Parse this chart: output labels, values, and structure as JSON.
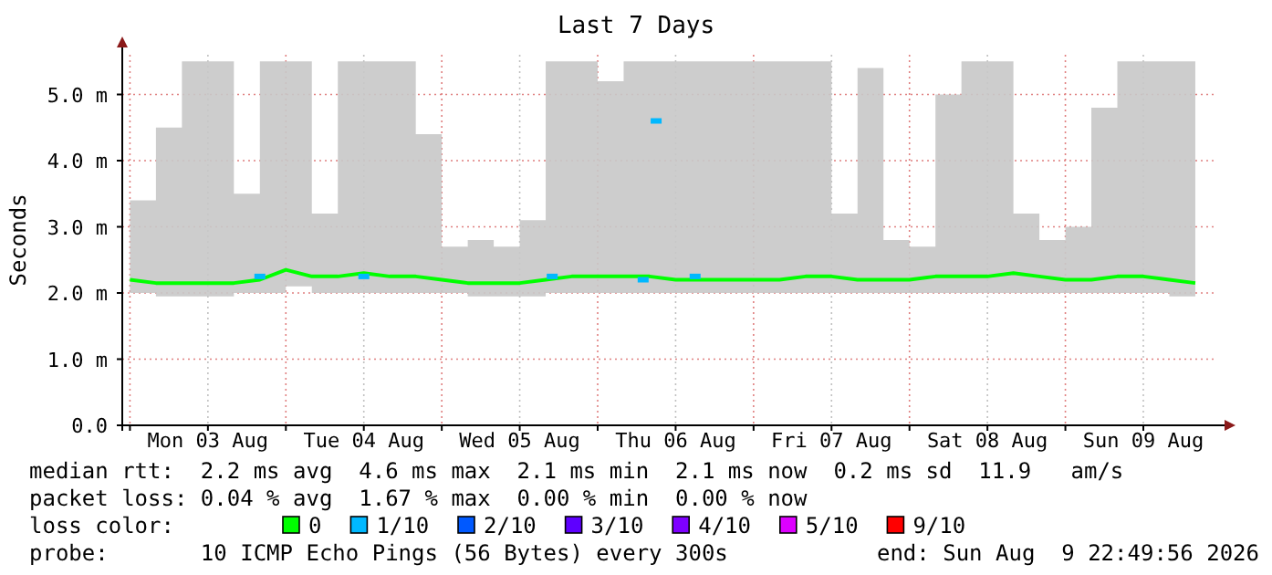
{
  "chart_data": {
    "type": "line",
    "title": "Last 7 Days",
    "ylabel": "Seconds",
    "xlim": [
      "2026-08-02T22:49",
      "2026-08-09T22:49"
    ],
    "xticks": [
      {
        "value": "2026-08-03T00:00",
        "label": null
      },
      {
        "value": "2026-08-03T12:00",
        "label": "Mon 03 Aug"
      },
      {
        "value": "2026-08-04T00:00",
        "label": null
      },
      {
        "value": "2026-08-04T12:00",
        "label": "Tue 04 Aug"
      },
      {
        "value": "2026-08-05T00:00",
        "label": null
      },
      {
        "value": "2026-08-05T12:00",
        "label": "Wed 05 Aug"
      },
      {
        "value": "2026-08-06T00:00",
        "label": null
      },
      {
        "value": "2026-08-06T12:00",
        "label": "Thu 06 Aug"
      },
      {
        "value": "2026-08-07T00:00",
        "label": null
      },
      {
        "value": "2026-08-07T12:00",
        "label": "Fri 07 Aug"
      },
      {
        "value": "2026-08-08T00:00",
        "label": null
      },
      {
        "value": "2026-08-08T12:00",
        "label": "Sat 08 Aug"
      },
      {
        "value": "2026-08-09T00:00",
        "label": null
      },
      {
        "value": "2026-08-09T12:00",
        "label": "Sun 09 Aug"
      }
    ],
    "ylim": [
      0,
      5.6
    ],
    "yticks": [
      {
        "value": 0,
        "label": "0.0"
      },
      {
        "value": 1,
        "label": "1.0 m"
      },
      {
        "value": 2,
        "label": "2.0 m"
      },
      {
        "value": 3,
        "label": "3.0 m"
      },
      {
        "value": 4,
        "label": "4.0 m"
      },
      {
        "value": 5,
        "label": "5.0 m"
      }
    ],
    "grid": true,
    "legend": "bottom",
    "legend_title": "loss color:",
    "x": [
      "2026-08-03T00:00",
      "2026-08-03T04:00",
      "2026-08-03T08:00",
      "2026-08-03T12:00",
      "2026-08-03T16:00",
      "2026-08-03T20:00",
      "2026-08-04T00:00",
      "2026-08-04T04:00",
      "2026-08-04T08:00",
      "2026-08-04T12:00",
      "2026-08-04T16:00",
      "2026-08-04T20:00",
      "2026-08-05T00:00",
      "2026-08-05T04:00",
      "2026-08-05T08:00",
      "2026-08-05T12:00",
      "2026-08-05T16:00",
      "2026-08-05T20:00",
      "2026-08-06T00:00",
      "2026-08-06T04:00",
      "2026-08-06T08:00",
      "2026-08-06T12:00",
      "2026-08-06T16:00",
      "2026-08-06T20:00",
      "2026-08-07T00:00",
      "2026-08-07T04:00",
      "2026-08-07T08:00",
      "2026-08-07T12:00",
      "2026-08-07T16:00",
      "2026-08-07T20:00",
      "2026-08-08T00:00",
      "2026-08-08T04:00",
      "2026-08-08T08:00",
      "2026-08-08T12:00",
      "2026-08-08T16:00",
      "2026-08-08T20:00",
      "2026-08-09T00:00",
      "2026-08-09T04:00",
      "2026-08-09T08:00",
      "2026-08-09T12:00",
      "2026-08-09T16:00",
      "2026-08-09T20:00"
    ],
    "series": [
      {
        "name": "0",
        "color": "#00ff00",
        "values": [
          2.2,
          2.15,
          2.15,
          2.15,
          2.15,
          2.2,
          2.35,
          2.25,
          2.25,
          2.3,
          2.25,
          2.25,
          2.2,
          2.15,
          2.15,
          2.15,
          2.2,
          2.25,
          2.25,
          2.25,
          2.25,
          2.2,
          2.2,
          2.2,
          2.2,
          2.2,
          2.25,
          2.25,
          2.2,
          2.2,
          2.2,
          2.25,
          2.25,
          2.25,
          2.3,
          2.25,
          2.2,
          2.2,
          2.25,
          2.25,
          2.2,
          2.15
        ],
        "lower": [
          2.0,
          1.95,
          1.95,
          1.95,
          2.0,
          2.0,
          2.1,
          2.0,
          2.0,
          2.0,
          2.0,
          2.0,
          2.0,
          1.95,
          1.95,
          1.95,
          2.0,
          2.0,
          2.0,
          2.0,
          2.0,
          2.0,
          2.0,
          2.0,
          2.0,
          2.0,
          2.0,
          2.0,
          2.0,
          2.0,
          2.0,
          2.0,
          2.0,
          2.0,
          2.0,
          2.0,
          2.0,
          2.0,
          2.0,
          2.0,
          1.95,
          1.95
        ],
        "upper": [
          3.4,
          4.5,
          5.5,
          5.5,
          3.5,
          5.5,
          5.5,
          3.2,
          5.5,
          5.5,
          5.5,
          4.4,
          2.7,
          2.8,
          2.7,
          3.1,
          5.5,
          5.5,
          5.2,
          5.5,
          5.5,
          5.5,
          5.5,
          5.5,
          5.5,
          5.5,
          5.5,
          3.2,
          5.4,
          2.8,
          2.7,
          5.0,
          5.5,
          5.5,
          3.2,
          2.8,
          3.0,
          4.8,
          5.5,
          5.5,
          5.5,
          5.5
        ]
      },
      {
        "name": "1/10",
        "type": "scatter",
        "color": "#00b8ff",
        "x": [
          "2026-08-03T20:00",
          "2026-08-04T12:00",
          "2026-08-05T17:00",
          "2026-08-06T07:00",
          "2026-08-06T09:00",
          "2026-08-06T15:00"
        ],
        "values": [
          2.25,
          2.25,
          2.25,
          2.2,
          4.6,
          2.25
        ],
        "marker": "square"
      },
      {
        "name": "2/10",
        "type": "scatter",
        "color": "#0059ff",
        "values": [
          null,
          null,
          null,
          null,
          null,
          null,
          null,
          null,
          null,
          null,
          null,
          null,
          null,
          null,
          null,
          null,
          null,
          null,
          null,
          null,
          null,
          null,
          null,
          null,
          null,
          null,
          null,
          null,
          null,
          null,
          null,
          null,
          null,
          null,
          null,
          null,
          null,
          null,
          null,
          null,
          null,
          null
        ]
      },
      {
        "name": "3/10",
        "type": "scatter",
        "color": "#5e00ff",
        "values": [
          null,
          null,
          null,
          null,
          null,
          null,
          null,
          null,
          null,
          null,
          null,
          null,
          null,
          null,
          null,
          null,
          null,
          null,
          null,
          null,
          null,
          null,
          null,
          null,
          null,
          null,
          null,
          null,
          null,
          null,
          null,
          null,
          null,
          null,
          null,
          null,
          null,
          null,
          null,
          null,
          null,
          null
        ]
      },
      {
        "name": "4/10",
        "type": "scatter",
        "color": "#7e00ff",
        "values": [
          null,
          null,
          null,
          null,
          null,
          null,
          null,
          null,
          null,
          null,
          null,
          null,
          null,
          null,
          null,
          null,
          null,
          null,
          null,
          null,
          null,
          null,
          null,
          null,
          null,
          null,
          null,
          null,
          null,
          null,
          null,
          null,
          null,
          null,
          null,
          null,
          null,
          null,
          null,
          null,
          null,
          null
        ]
      },
      {
        "name": "5/10",
        "type": "scatter",
        "color": "#dd00ff",
        "values": [
          null,
          null,
          null,
          null,
          null,
          null,
          null,
          null,
          null,
          null,
          null,
          null,
          null,
          null,
          null,
          null,
          null,
          null,
          null,
          null,
          null,
          null,
          null,
          null,
          null,
          null,
          null,
          null,
          null,
          null,
          null,
          null,
          null,
          null,
          null,
          null,
          null,
          null,
          null,
          null,
          null,
          null
        ]
      },
      {
        "name": "9/10",
        "type": "scatter",
        "color": "#ff0000",
        "values": [
          null,
          null,
          null,
          null,
          null,
          null,
          null,
          null,
          null,
          null,
          null,
          null,
          null,
          null,
          null,
          null,
          null,
          null,
          null,
          null,
          null,
          null,
          null,
          null,
          null,
          null,
          null,
          null,
          null,
          null,
          null,
          null,
          null,
          null,
          null,
          null,
          null,
          null,
          null,
          null,
          null,
          null
        ]
      }
    ],
    "annotations": [
      "median rtt:  2.2 ms avg  4.6 ms max  2.1 ms min  2.1 ms now  0.2 ms sd  11.9   am/s",
      "packet loss: 0.04 % avg  1.67 % max  0.00 % min  0.00 % now",
      "probe:       10 ICMP Echo Pings (56 Bytes) every 300s",
      "end: Sun Aug  9 22:49:56 2026"
    ]
  }
}
